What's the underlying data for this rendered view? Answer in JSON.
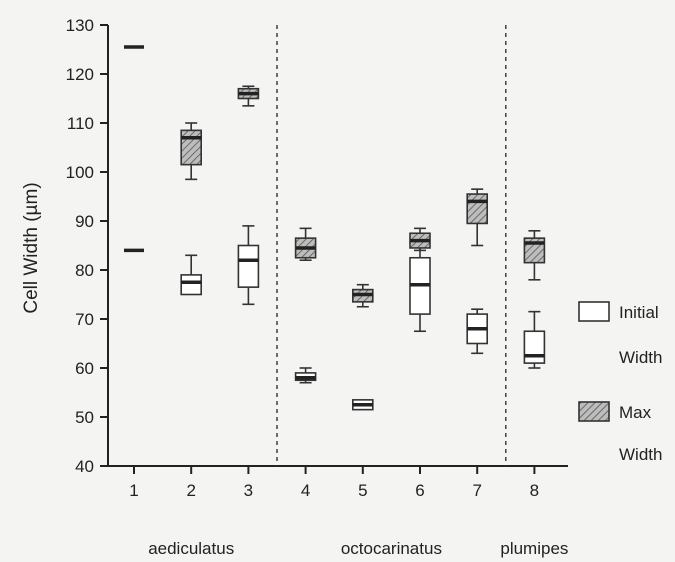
{
  "chart_data": {
    "type": "box",
    "y_axis": {
      "label": "Cell Width (µm)",
      "ylim": [
        40,
        130
      ],
      "ticks": [
        40,
        50,
        60,
        70,
        80,
        90,
        100,
        110,
        120,
        130
      ]
    },
    "x_axis": {
      "categories": [
        "1",
        "2",
        "3",
        "4",
        "5",
        "6",
        "7",
        "8"
      ]
    },
    "groups": [
      {
        "name": "aediculatus",
        "categories": [
          "1",
          "2",
          "3"
        ]
      },
      {
        "name": "octocarinatus",
        "categories": [
          "4",
          "5",
          "6",
          "7"
        ]
      },
      {
        "name": "plumipes",
        "categories": [
          "8"
        ]
      }
    ],
    "dividers_between": [
      3.5,
      7.5
    ],
    "series": [
      {
        "name": "Initial Width",
        "fill": "#ffffff",
        "boxes": [
          {
            "category": "1",
            "min": 84,
            "q1": 84,
            "median": 84,
            "q3": 84,
            "max": 84
          },
          {
            "category": "2",
            "min": 75,
            "q1": 75,
            "median": 77.5,
            "q3": 79,
            "max": 83
          },
          {
            "category": "3",
            "min": 73,
            "q1": 76.5,
            "median": 82,
            "q3": 85,
            "max": 89
          },
          {
            "category": "4",
            "min": 57,
            "q1": 57.5,
            "median": 58,
            "q3": 59,
            "max": 60
          },
          {
            "category": "5",
            "min": 51.5,
            "q1": 51.5,
            "median": 52.5,
            "q3": 53.5,
            "max": 53.5
          },
          {
            "category": "6",
            "min": 67.5,
            "q1": 71,
            "median": 77,
            "q3": 82.5,
            "max": 86
          },
          {
            "category": "7",
            "min": 63,
            "q1": 65,
            "median": 68,
            "q3": 71,
            "max": 72
          },
          {
            "category": "8",
            "min": 60,
            "q1": 61,
            "median": 62.5,
            "q3": 67.5,
            "max": 71.5
          }
        ]
      },
      {
        "name": "Max Width",
        "fill": "hatched",
        "boxes": [
          {
            "category": "1",
            "min": 125.5,
            "q1": 125.5,
            "median": 125.5,
            "q3": 125.5,
            "max": 125.5
          },
          {
            "category": "2",
            "min": 98.5,
            "q1": 101.5,
            "median": 107,
            "q3": 108.5,
            "max": 110
          },
          {
            "category": "3",
            "min": 113.5,
            "q1": 115,
            "median": 116,
            "q3": 117,
            "max": 117.5
          },
          {
            "category": "4",
            "min": 82,
            "q1": 82.5,
            "median": 84.5,
            "q3": 86.5,
            "max": 88.5
          },
          {
            "category": "5",
            "min": 72.5,
            "q1": 73.5,
            "median": 75,
            "q3": 76,
            "max": 77
          },
          {
            "category": "6",
            "min": 84,
            "q1": 84.5,
            "median": 86,
            "q3": 87.5,
            "max": 88.5
          },
          {
            "category": "7",
            "min": 85,
            "q1": 89.5,
            "median": 94,
            "q3": 95.5,
            "max": 96.5
          },
          {
            "category": "8",
            "min": 78,
            "q1": 81.5,
            "median": 85.5,
            "q3": 86.5,
            "max": 88
          }
        ]
      }
    ],
    "legend": {
      "placement": "right",
      "entries": [
        {
          "label_line1": "Initial",
          "label_line2": "Width",
          "fill": "#ffffff"
        },
        {
          "label_line1": "Max",
          "label_line2": "Width",
          "fill": "hatched"
        }
      ]
    },
    "grid": false
  }
}
